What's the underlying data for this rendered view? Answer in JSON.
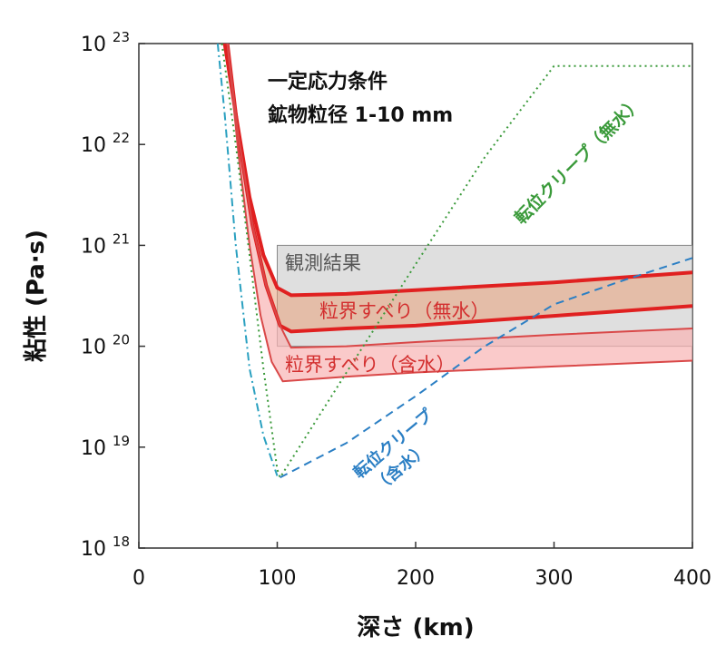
{
  "chart_data": {
    "type": "line",
    "xlabel": "深さ (km)",
    "ylabel": "粘性 (Pa·s)",
    "xlim": [
      0,
      400
    ],
    "ylim_log10": [
      18,
      23
    ],
    "y_scale": "log",
    "x_ticks": [
      0,
      100,
      200,
      300,
      400
    ],
    "y_ticks": [
      {
        "base": "10",
        "exp": "18"
      },
      {
        "base": "10",
        "exp": "19"
      },
      {
        "base": "10",
        "exp": "20"
      },
      {
        "base": "10",
        "exp": "21"
      },
      {
        "base": "10",
        "exp": "22"
      },
      {
        "base": "10",
        "exp": "23"
      }
    ],
    "annotations": [
      "一定応力条件",
      "鉱物粒径 1-10 mm"
    ],
    "observation_band": {
      "label": "観測結果",
      "x": [
        100,
        400
      ],
      "y": [
        1e+20,
        1e+21
      ],
      "color": "#d9d9d9"
    },
    "series": [
      {
        "name": "粒界すべり（無水）",
        "style": "band",
        "color": "#e53935",
        "upper": [
          [
            62,
            1e+23
          ],
          [
            70,
            2e+22
          ],
          [
            80,
            3e+21
          ],
          [
            90,
            8e+20
          ],
          [
            100,
            3.8e+20
          ],
          [
            110,
            3.2e+20
          ],
          [
            150,
            3.3e+20
          ],
          [
            200,
            3.6e+20
          ],
          [
            300,
            4.3e+20
          ],
          [
            400,
            5.4e+20
          ]
        ],
        "lower": [
          [
            64,
            1e+23
          ],
          [
            72,
            1.2e+22
          ],
          [
            82,
            1.6e+21
          ],
          [
            92,
            4e+20
          ],
          [
            102,
            1.6e+20
          ],
          [
            110,
            1.4e+20
          ],
          [
            150,
            1.5e+20
          ],
          [
            200,
            1.6e+20
          ],
          [
            300,
            2e+20
          ],
          [
            400,
            2.5e+20
          ]
        ]
      },
      {
        "name": "粒界すべり（含水）",
        "style": "band",
        "color": "#f8b4b4",
        "upper": [
          [
            64,
            1e+23
          ],
          [
            72,
            1.2e+22
          ],
          [
            82,
            1.6e+21
          ],
          [
            92,
            4e+20
          ],
          [
            102,
            1.6e+20
          ],
          [
            110,
            9.7e+19
          ],
          [
            150,
            1e+20
          ],
          [
            200,
            1.1e+20
          ],
          [
            300,
            1.3e+20
          ],
          [
            400,
            1.5e+20
          ]
        ],
        "lower": [
          [
            64,
            1e+23
          ],
          [
            72,
            8e+21
          ],
          [
            80,
            1e+21
          ],
          [
            88,
            2e+20
          ],
          [
            96,
            7e+19
          ],
          [
            104,
            4.5e+19
          ],
          [
            150,
            5e+19
          ],
          [
            200,
            5.5e+19
          ],
          [
            300,
            6.3e+19
          ],
          [
            400,
            7.2e+19
          ]
        ]
      },
      {
        "name": "転位クリープ（無水）",
        "style": "dotted",
        "color": "#3a9a3a",
        "points": [
          [
            60,
            1e+23
          ],
          [
            70,
            1e+22
          ],
          [
            80,
            8e+20
          ],
          [
            90,
            6e+19
          ],
          [
            100,
            6e+18
          ],
          [
            102,
            5e+18
          ],
          [
            150,
            5.5e+19
          ],
          [
            200,
            6.5e+20
          ],
          [
            250,
            7.5e+21
          ],
          [
            300,
            6e+22
          ],
          [
            400,
            6e+22
          ]
        ]
      },
      {
        "name": "転位クリープ（含水）",
        "style": "dashed",
        "color": "#2b7fc4",
        "points": [
          [
            102,
            5e+18
          ],
          [
            150,
            1.1e+19
          ],
          [
            200,
            3.2e+19
          ],
          [
            250,
            1e+20
          ],
          [
            300,
            2.6e+20
          ],
          [
            350,
            4.5e+20
          ],
          [
            400,
            7.5e+20
          ]
        ]
      },
      {
        "name": "",
        "style": "dashdot",
        "color": "#2aa0c0",
        "points": [
          [
            57,
            1e+23
          ],
          [
            62,
            2e+22
          ],
          [
            70,
            1e+21
          ],
          [
            80,
            6e+19
          ],
          [
            90,
            1.3e+19
          ],
          [
            100,
            5.2e+18
          ]
        ]
      }
    ],
    "labels": {
      "obs": "観測結果",
      "gb_dry": "粒界すべり（無水）",
      "gb_wet": "粒界すべり（含水）",
      "dc_dry": "転位クリープ（無水）",
      "dc_wet_1": "転位クリープ",
      "dc_wet_2": "（含水）"
    }
  }
}
